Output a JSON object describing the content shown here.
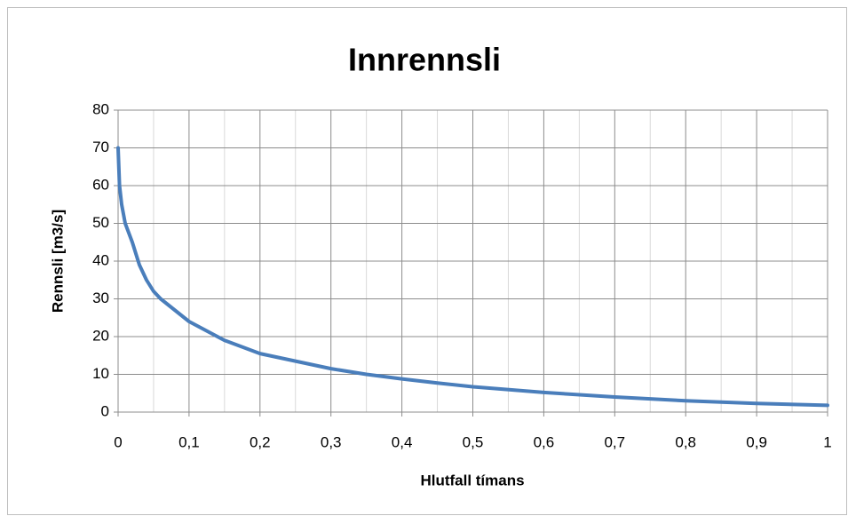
{
  "chart_data": {
    "type": "line",
    "title": "Innrennsli",
    "xlabel": "Hlutfall tímans",
    "ylabel": "Rennsli [m3/s]",
    "x": [
      0,
      0.002,
      0.005,
      0.01,
      0.02,
      0.03,
      0.04,
      0.05,
      0.06,
      0.08,
      0.1,
      0.15,
      0.2,
      0.25,
      0.3,
      0.35,
      0.4,
      0.45,
      0.5,
      0.6,
      0.7,
      0.8,
      0.9,
      1
    ],
    "series": [
      {
        "name": "Innrennsli",
        "color": "#4a7ebb",
        "values": [
          70,
          60,
          55,
          50,
          45,
          39,
          35,
          32,
          30,
          27,
          24,
          19,
          15.5,
          13.5,
          11.5,
          10,
          8.8,
          7.7,
          6.7,
          5.2,
          4,
          3,
          2.3,
          1.8
        ]
      }
    ],
    "xlim": [
      0,
      1
    ],
    "ylim": [
      0,
      80
    ],
    "xticks": [
      0,
      {
        "value": 0.1,
        "label": "0,1"
      },
      {
        "value": 0.2,
        "label": "0,2"
      },
      {
        "value": 0.3,
        "label": "0,3"
      },
      {
        "value": 0.4,
        "label": "0,4"
      },
      {
        "value": 0.5,
        "label": "0,5"
      },
      {
        "value": 0.6,
        "label": "0,6"
      },
      {
        "value": 0.7,
        "label": "0,7"
      },
      {
        "value": 0.8,
        "label": "0,8"
      },
      {
        "value": 0.9,
        "label": "0,9"
      },
      1
    ],
    "xminorticks": [
      0.05,
      0.15,
      0.25,
      0.35,
      0.45,
      0.55,
      0.65,
      0.75,
      0.85,
      0.95
    ],
    "yticks": [
      0,
      10,
      20,
      30,
      40,
      50,
      60,
      70,
      80
    ],
    "grid": true
  }
}
